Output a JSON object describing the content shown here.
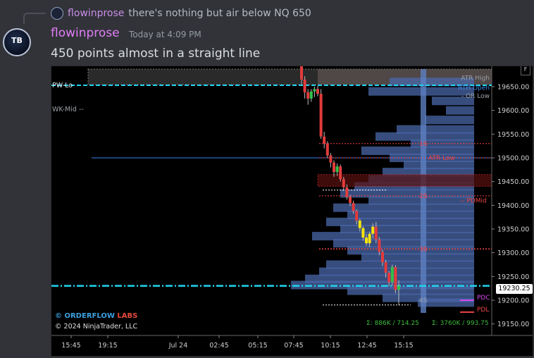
{
  "reply": {
    "username": "flowinprose",
    "text": "there's nothing but air below NQ 650"
  },
  "avatar": {
    "text": "TB"
  },
  "message": {
    "username": "flowinprose",
    "timestamp": "Today at 4:09 PM",
    "text": "450 points almost in a straight line"
  },
  "chart": {
    "watermark_brand": "© ORDERFLOW",
    "watermark_labs": "LABS",
    "copyright": "© 2024 NinjaTrader, LLC",
    "current_price": "19230.25",
    "sigma1": "Σ: 886K / 714.25",
    "sigma2": "Σ: 3760K / 993.75",
    "corner_button": "F",
    "chart_data": {
      "type": "candlestick",
      "y_ticks": [
        "19650.00",
        "19600.00",
        "19550.00",
        "19500.00",
        "19450.00",
        "19400.00",
        "19350.00",
        "19300.00",
        "19250.00",
        "19200.00",
        "19150.00"
      ],
      "y_values": [
        19650,
        19600,
        19550,
        19500,
        19450,
        19400,
        19350,
        19300,
        19250,
        19200,
        19150
      ],
      "x_ticks": [
        "15:45",
        "19:15",
        "Jul 24",
        "02:45",
        "05:15",
        "07:45",
        "10:15",
        "12:45",
        "15:15"
      ],
      "levels": [
        {
          "label": "PW-Lo",
          "price": 19653,
          "color": "#22d3ee"
        },
        {
          "label": "WK-Mid --",
          "price": 19628,
          "color": "#9aa0a6"
        },
        {
          "label": "ATR High",
          "price": 19660,
          "color": "#9aa0a6"
        },
        {
          "label": "RTH Open",
          "price": 19640,
          "color": "#3b8bea"
        },
        {
          "label": "OR Low",
          "price": 19625,
          "color": "#9aa0a6"
        },
        {
          "label": "1S",
          "price": 19530,
          "color": "#ef4444"
        },
        {
          "label": "ATR Low",
          "price": 19500,
          "color": "#ef4444"
        },
        {
          "label": "2S",
          "price": 19420,
          "color": "#ef4444"
        },
        {
          "label": "PDMid",
          "price": 19410,
          "color": "#ef4444"
        },
        {
          "label": "3S",
          "price": 19308,
          "color": "#ef4444"
        },
        {
          "label": "4S",
          "price": 19200,
          "color": "#9aa0a6"
        },
        {
          "label": "PDC",
          "price": 19200,
          "color": "#d946ef"
        },
        {
          "label": "PDL",
          "price": 19175,
          "color": "#ef4444"
        }
      ],
      "candles": [
        {
          "o": 19700,
          "h": 19710,
          "l": 19655,
          "c": 19665
        },
        {
          "o": 19665,
          "h": 19672,
          "l": 19625,
          "c": 19638
        },
        {
          "o": 19638,
          "h": 19645,
          "l": 19612,
          "c": 19625
        },
        {
          "o": 19625,
          "h": 19645,
          "l": 19618,
          "c": 19640
        },
        {
          "o": 19640,
          "h": 19650,
          "l": 19628,
          "c": 19645
        },
        {
          "o": 19645,
          "h": 19652,
          "l": 19630,
          "c": 19635
        },
        {
          "o": 19635,
          "h": 19645,
          "l": 19540,
          "c": 19545
        },
        {
          "o": 19545,
          "h": 19555,
          "l": 19520,
          "c": 19530
        },
        {
          "o": 19530,
          "h": 19535,
          "l": 19500,
          "c": 19505
        },
        {
          "o": 19505,
          "h": 19510,
          "l": 19480,
          "c": 19490
        },
        {
          "o": 19490,
          "h": 19495,
          "l": 19460,
          "c": 19470
        },
        {
          "o": 19470,
          "h": 19488,
          "l": 19462,
          "c": 19482
        },
        {
          "o": 19482,
          "h": 19486,
          "l": 19450,
          "c": 19455
        },
        {
          "o": 19455,
          "h": 19460,
          "l": 19430,
          "c": 19438
        },
        {
          "o": 19438,
          "h": 19444,
          "l": 19412,
          "c": 19418
        },
        {
          "o": 19418,
          "h": 19422,
          "l": 19398,
          "c": 19405
        },
        {
          "o": 19405,
          "h": 19410,
          "l": 19382,
          "c": 19388
        },
        {
          "o": 19388,
          "h": 19392,
          "l": 19360,
          "c": 19368
        },
        {
          "o": 19368,
          "h": 19372,
          "l": 19345,
          "c": 19352
        },
        {
          "o": 19352,
          "h": 19356,
          "l": 19325,
          "c": 19332
        },
        {
          "o": 19332,
          "h": 19340,
          "l": 19315,
          "c": 19320
        },
        {
          "o": 19320,
          "h": 19345,
          "l": 19312,
          "c": 19340
        },
        {
          "o": 19340,
          "h": 19362,
          "l": 19330,
          "c": 19355
        },
        {
          "o": 19355,
          "h": 19365,
          "l": 19320,
          "c": 19328
        },
        {
          "o": 19328,
          "h": 19333,
          "l": 19295,
          "c": 19302
        },
        {
          "o": 19302,
          "h": 19306,
          "l": 19272,
          "c": 19280
        },
        {
          "o": 19280,
          "h": 19285,
          "l": 19248,
          "c": 19258
        },
        {
          "o": 19258,
          "h": 19262,
          "l": 19230,
          "c": 19238
        },
        {
          "o": 19238,
          "h": 19275,
          "l": 19230,
          "c": 19270
        },
        {
          "o": 19270,
          "h": 19274,
          "l": 19215,
          "c": 19222
        },
        {
          "o": 19222,
          "h": 19242,
          "l": 19190,
          "c": 19230
        }
      ]
    }
  }
}
